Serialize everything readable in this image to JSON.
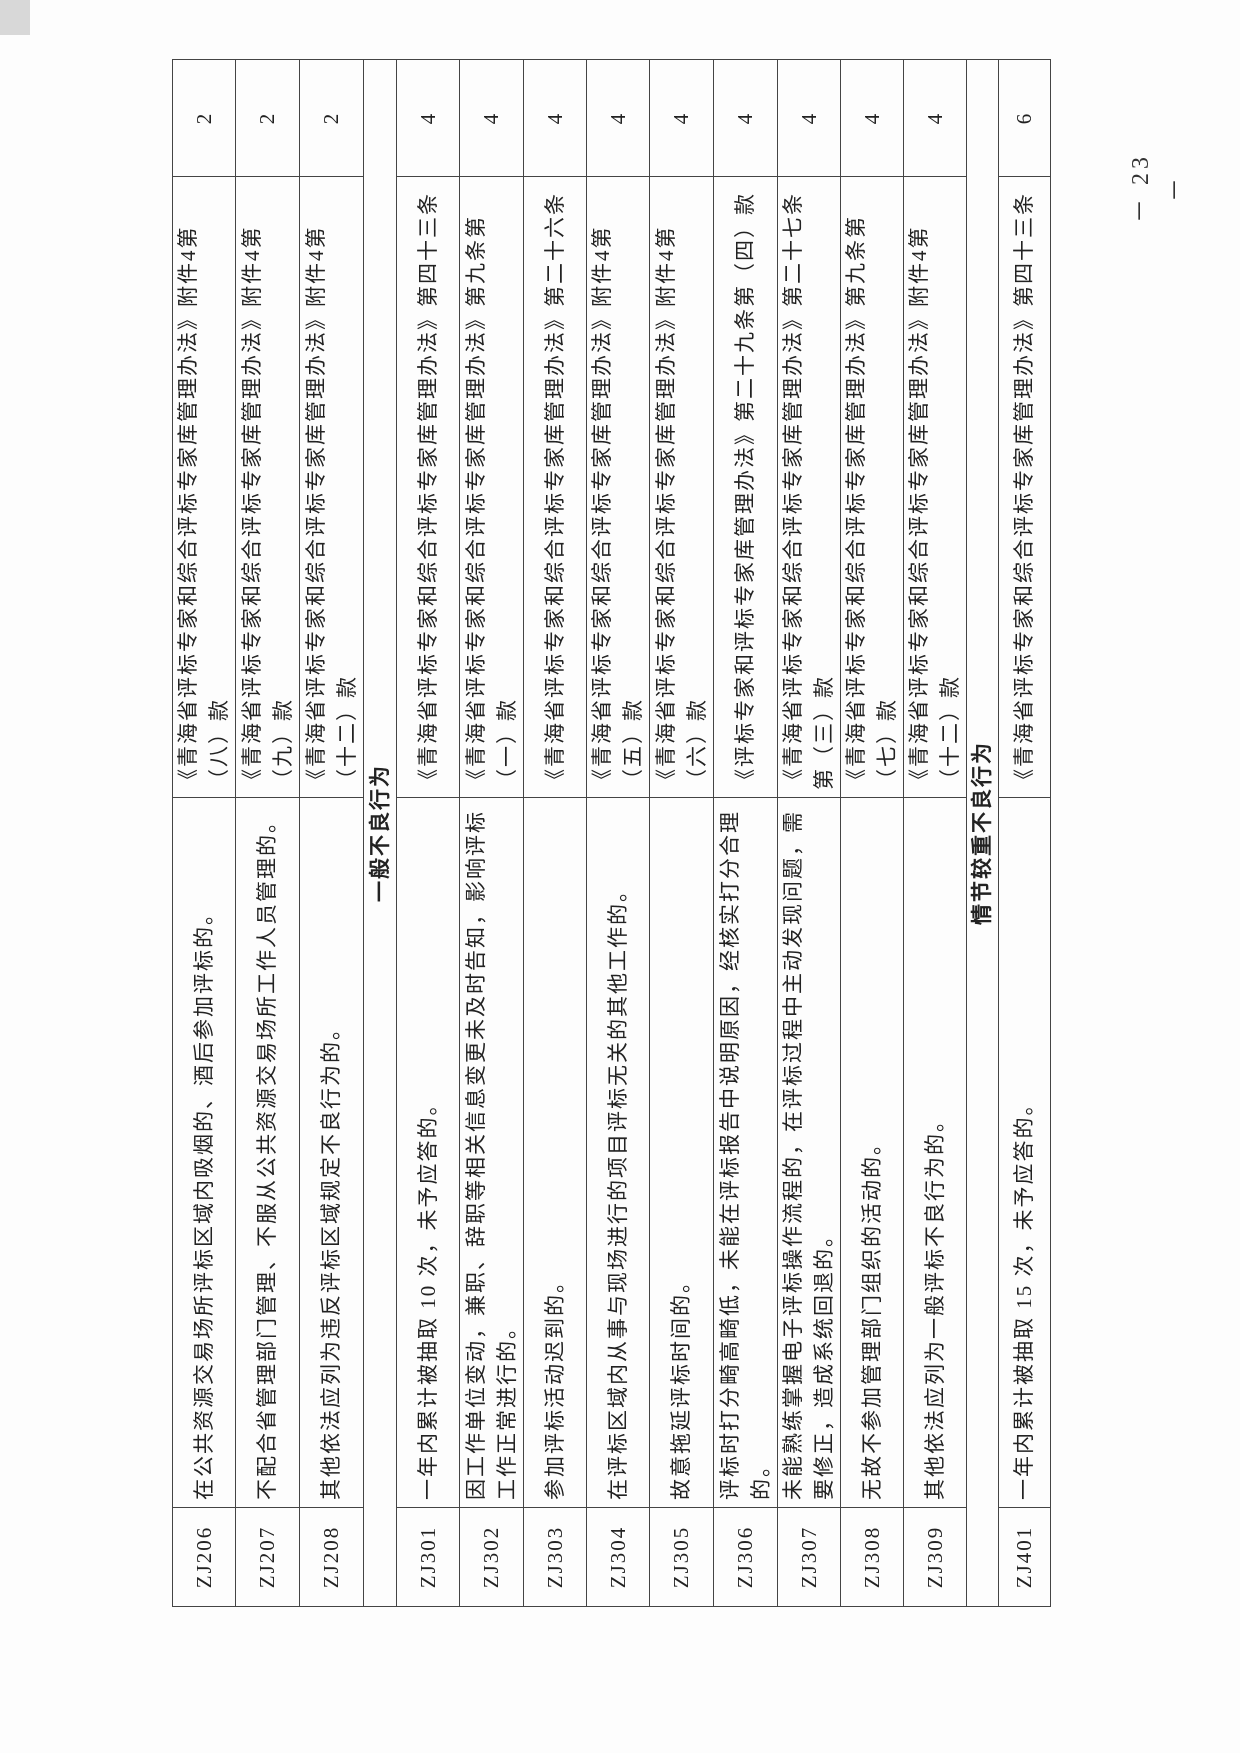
{
  "table": {
    "rows": [
      {
        "type": "item",
        "code": "ZJ206",
        "description": "在公共资源交易场所评标区域内吸烟的、酒后参加评标的。",
        "basis": "《青海省评标专家和综合评标专家库管理办法》附件4第（八）款",
        "score": "2"
      },
      {
        "type": "item",
        "code": "ZJ207",
        "description": "不配合省管理部门管理、不服从公共资源交易场所工作人员管理的。",
        "basis": "《青海省评标专家和综合评标专家库管理办法》附件4第（九）款",
        "score": "2"
      },
      {
        "type": "item",
        "code": "ZJ208",
        "description": "其他依法应列为违反评标区域规定不良行为的。",
        "basis": "《青海省评标专家和综合评标专家库管理办法》附件4第（十二）款",
        "score": "2"
      },
      {
        "type": "section",
        "title": "一般不良行为"
      },
      {
        "type": "item",
        "code": "ZJ301",
        "description": "一年内累计被抽取 10 次，未予应答的。",
        "basis": "《青海省评标专家和综合评标专家库管理办法》第四十三条",
        "score": "4"
      },
      {
        "type": "item",
        "code": "ZJ302",
        "description": "因工作单位变动，兼职、辞职等相关信息变更未及时告知，影响评标工作正常进行的。",
        "basis": "《青海省评标专家和综合评标专家库管理办法》第九条第（一）款",
        "score": "4"
      },
      {
        "type": "item",
        "code": "ZJ303",
        "description": "参加评标活动迟到的。",
        "basis": "《青海省评标专家和综合评标专家库管理办法》第二十六条",
        "score": "4"
      },
      {
        "type": "item",
        "code": "ZJ304",
        "description": "在评标区域内从事与现场进行的项目评标无关的其他工作的。",
        "basis": "《青海省评标专家和综合评标专家库管理办法》附件4第（五）款",
        "score": "4"
      },
      {
        "type": "item",
        "code": "ZJ305",
        "description": "故意拖延评标时间的。",
        "basis": "《青海省评标专家和综合评标专家库管理办法》附件4第（六）款",
        "score": "4"
      },
      {
        "type": "item",
        "code": "ZJ306",
        "description": "评标时打分畸高畸低，未能在评标报告中说明原因，经核实打分合理的。",
        "basis": "《评标专家和评标专家库管理办法》第二十九条第（四）款",
        "score": "4"
      },
      {
        "type": "item",
        "code": "ZJ307",
        "description": "未能熟练掌握电子评标操作流程的，在评标过程中主动发现问题，需要修正，造成系统回退的。",
        "basis": "《青海省评标专家和综合评标专家库管理办法》第二十七条第（三）款",
        "score": "4"
      },
      {
        "type": "item",
        "code": "ZJ308",
        "description": "无故不参加管理部门组织的活动的。",
        "basis": "《青海省评标专家和综合评标专家库管理办法》第九条第（七）款",
        "score": "4"
      },
      {
        "type": "item",
        "code": "ZJ309",
        "description": "其他依法应列为一般评标不良行为的。",
        "basis": "《青海省评标专家和综合评标专家库管理办法》附件4第（十二）款",
        "score": "4"
      },
      {
        "type": "section",
        "title": "情节较重不良行为"
      },
      {
        "type": "item",
        "code": "ZJ401",
        "description": "一年内累计被抽取 15 次，未予应答的。",
        "basis": "《青海省评标专家和综合评标专家库管理办法》第四十三条",
        "score": "6"
      }
    ]
  },
  "page_number": "－ 23 －"
}
